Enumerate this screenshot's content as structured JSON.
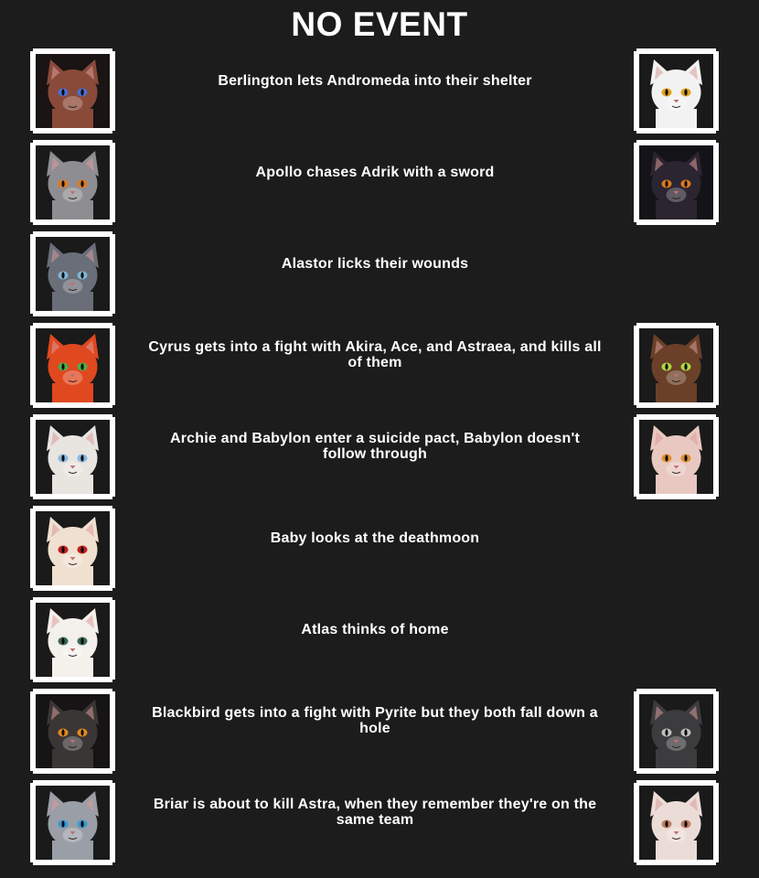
{
  "header": {
    "title": "NO EVENT"
  },
  "events": [
    {
      "text": "Berlington lets Andromeda into their shelter",
      "left": {
        "name": "Berlington",
        "fur": "#8a4a3a",
        "eye": "#4a6fd1",
        "bg": "#1a1414"
      },
      "right": {
        "name": "Andromeda",
        "fur": "#f2f2f2",
        "eye": "#e0a020",
        "bg": "#1a1a1a"
      }
    },
    {
      "text": "Apollo chases Adrik with a sword",
      "left": {
        "name": "Apollo",
        "fur": "#8e8e92",
        "eye": "#e07a20",
        "bg": "#1a1a1a"
      },
      "right": {
        "name": "Adrik",
        "fur": "#2a2530",
        "eye": "#e07a20",
        "bg": "#141418"
      }
    },
    {
      "text": "Alastor licks their wounds",
      "left": {
        "name": "Alastor",
        "fur": "#6a6e78",
        "eye": "#7fb8d8",
        "bg": "#1a1a1a"
      },
      "right": null
    },
    {
      "text": "Cyrus gets into a fight with Akira, Ace, and Astraea, and kills all of them",
      "left": {
        "name": "Cyrus",
        "fur": "#e04820",
        "eye": "#4ab04a",
        "bg": "#1a1a1a"
      },
      "right": {
        "name": "Akira",
        "fur": "#6a4028",
        "eye": "#b0d840",
        "bg": "#1a1a1a"
      }
    },
    {
      "text": "Archie and Babylon enter a suicide pact, Babylon doesn't follow through",
      "left": {
        "name": "Archie",
        "fur": "#e8e4e0",
        "eye": "#8ab8e0",
        "bg": "#1a1a1a"
      },
      "right": {
        "name": "Babylon",
        "fur": "#e8c8c0",
        "eye": "#e09030",
        "bg": "#1a1a1a"
      }
    },
    {
      "text": "Baby looks at the deathmoon",
      "left": {
        "name": "Baby",
        "fur": "#f0e0d0",
        "eye": "#c02020",
        "bg": "#1a1a1a"
      },
      "right": null
    },
    {
      "text": "Atlas thinks of home",
      "left": {
        "name": "Atlas",
        "fur": "#f4f0ec",
        "eye": "#3a6a5a",
        "bg": "#1a1a1a"
      },
      "right": null
    },
    {
      "text": "Blackbird gets into a fight with Pyrite but they both fall down a hole",
      "left": {
        "name": "Blackbird",
        "fur": "#3a3636",
        "eye": "#e08a20",
        "bg": "#161414"
      },
      "right": {
        "name": "Pyrite",
        "fur": "#3c3c3e",
        "eye": "#c0c0c0",
        "bg": "#1a1a1a"
      }
    },
    {
      "text": "Briar is about to kill Astra, when they remember they're on the same team",
      "left": {
        "name": "Briar",
        "fur": "#9a9ea6",
        "eye": "#3a9ad0",
        "bg": "#1a1a1a"
      },
      "right": {
        "name": "Astra",
        "fur": "#ecdcd8",
        "eye": "#c08060",
        "bg": "#1a1a1a"
      }
    }
  ]
}
